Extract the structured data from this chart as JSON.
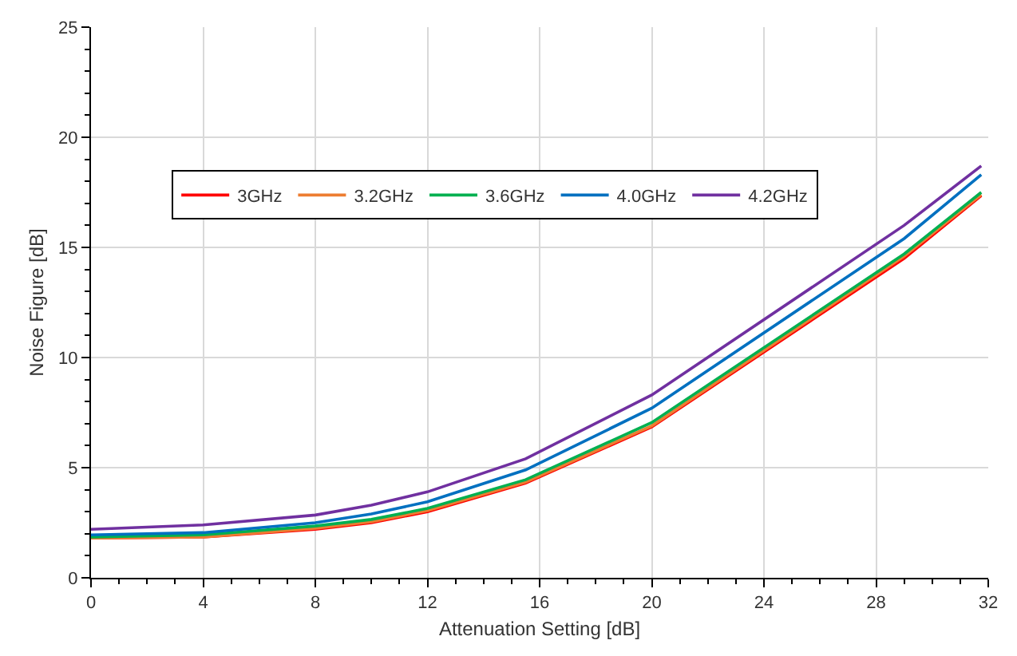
{
  "chart_data": {
    "type": "line",
    "xlabel": "Attenuation Setting [dB]",
    "ylabel": "Noise Figure [dB]",
    "x": [
      0,
      4,
      8,
      10,
      12,
      15.5,
      20,
      29,
      31.75
    ],
    "series": [
      {
        "name": "3GHz",
        "color": "#ff0000",
        "values": [
          1.8,
          1.85,
          2.2,
          2.5,
          3.0,
          4.3,
          6.85,
          14.5,
          17.35
        ]
      },
      {
        "name": "3.2GHz",
        "color": "#ed7d31",
        "values": [
          1.8,
          1.85,
          2.25,
          2.55,
          3.05,
          4.35,
          6.9,
          14.6,
          17.4
        ]
      },
      {
        "name": "3.6GHz",
        "color": "#00b050",
        "values": [
          1.85,
          1.95,
          2.35,
          2.65,
          3.15,
          4.45,
          7.05,
          14.7,
          17.5
        ]
      },
      {
        "name": "4.0GHz",
        "color": "#0070c0",
        "values": [
          1.95,
          2.05,
          2.5,
          2.9,
          3.45,
          4.9,
          7.7,
          15.4,
          18.3
        ]
      },
      {
        "name": "4.2GHz",
        "color": "#7030a0",
        "values": [
          2.2,
          2.4,
          2.85,
          3.3,
          3.9,
          5.4,
          8.3,
          16.0,
          18.7
        ]
      }
    ],
    "xlim": [
      0,
      32
    ],
    "xticks": [
      0,
      4,
      8,
      12,
      16,
      20,
      24,
      28,
      32
    ],
    "ylim": [
      0,
      25
    ],
    "yticks": [
      0,
      5,
      10,
      15,
      20,
      25
    ],
    "grid": true,
    "legend": "top left",
    "marker": "none",
    "line_style": "solid"
  }
}
